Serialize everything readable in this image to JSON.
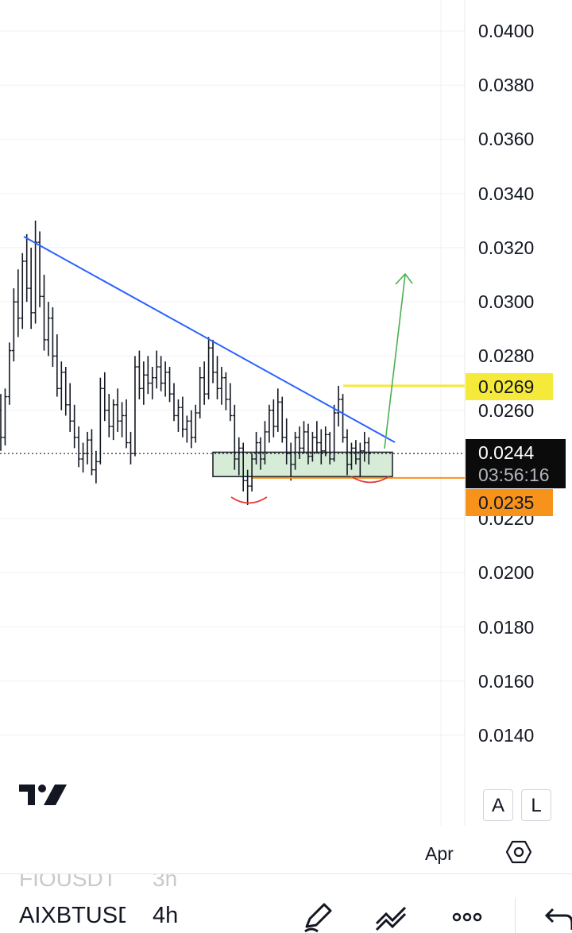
{
  "chart_data": {
    "type": "candlestick",
    "symbol": "AIXBTUSDT",
    "timeframe": "4h",
    "y_axis": {
      "ticks": [
        "0.0400",
        "0.0380",
        "0.0360",
        "0.0340",
        "0.0320",
        "0.0300",
        "0.0280",
        "0.0260",
        "0.0220",
        "0.0200",
        "0.0180",
        "0.0160",
        "0.0140"
      ],
      "range": [
        0.0122,
        0.041
      ]
    },
    "x_axis": {
      "ticks": [
        "Apr"
      ]
    },
    "current_price": "0.0244",
    "countdown": "03:56:16",
    "levels": {
      "resistance": "0.0269",
      "support": "0.0235"
    },
    "ohlc": [
      [
        0.026,
        0.0266,
        0.0245,
        0.025
      ],
      [
        0.025,
        0.0268,
        0.0247,
        0.0265
      ],
      [
        0.0265,
        0.0285,
        0.0262,
        0.0282
      ],
      [
        0.0282,
        0.0305,
        0.0278,
        0.03
      ],
      [
        0.03,
        0.0312,
        0.0287,
        0.0294
      ],
      [
        0.0294,
        0.0318,
        0.029,
        0.0315
      ],
      [
        0.0315,
        0.0325,
        0.03,
        0.0305
      ],
      [
        0.0305,
        0.032,
        0.029,
        0.0296
      ],
      [
        0.0296,
        0.033,
        0.0292,
        0.0322
      ],
      [
        0.0322,
        0.0326,
        0.0298,
        0.0302
      ],
      [
        0.0302,
        0.031,
        0.0282,
        0.0286
      ],
      [
        0.0286,
        0.03,
        0.028,
        0.0294
      ],
      [
        0.0294,
        0.0298,
        0.0276,
        0.028
      ],
      [
        0.028,
        0.0288,
        0.0265,
        0.0268
      ],
      [
        0.0268,
        0.0278,
        0.026,
        0.0274
      ],
      [
        0.0274,
        0.0276,
        0.0258,
        0.0262
      ],
      [
        0.0262,
        0.027,
        0.0252,
        0.0256
      ],
      [
        0.0256,
        0.0262,
        0.0246,
        0.025
      ],
      [
        0.025,
        0.0254,
        0.0239,
        0.0242
      ],
      [
        0.0242,
        0.0248,
        0.0237,
        0.0244
      ],
      [
        0.0244,
        0.0252,
        0.024,
        0.0249
      ],
      [
        0.0249,
        0.0253,
        0.0236,
        0.0238
      ],
      [
        0.0238,
        0.0245,
        0.0233,
        0.0241
      ],
      [
        0.0241,
        0.0272,
        0.024,
        0.0268
      ],
      [
        0.0268,
        0.0274,
        0.0256,
        0.026
      ],
      [
        0.026,
        0.0266,
        0.025,
        0.0254
      ],
      [
        0.0254,
        0.0264,
        0.0249,
        0.0262
      ],
      [
        0.0262,
        0.0268,
        0.0252,
        0.0256
      ],
      [
        0.0256,
        0.0263,
        0.025,
        0.0258
      ],
      [
        0.0258,
        0.0264,
        0.0246,
        0.0248
      ],
      [
        0.0248,
        0.0252,
        0.024,
        0.0244
      ],
      [
        0.0244,
        0.028,
        0.0243,
        0.0276
      ],
      [
        0.0276,
        0.0282,
        0.0264,
        0.0268
      ],
      [
        0.0268,
        0.0278,
        0.0262,
        0.0273
      ],
      [
        0.0273,
        0.028,
        0.0266,
        0.027
      ],
      [
        0.027,
        0.0276,
        0.0264,
        0.0272
      ],
      [
        0.0272,
        0.0282,
        0.0268,
        0.0276
      ],
      [
        0.0276,
        0.028,
        0.0267,
        0.027
      ],
      [
        0.027,
        0.0278,
        0.0265,
        0.0274
      ],
      [
        0.0274,
        0.0276,
        0.0263,
        0.0266
      ],
      [
        0.0266,
        0.027,
        0.0256,
        0.0258
      ],
      [
        0.0258,
        0.0264,
        0.0252,
        0.0261
      ],
      [
        0.0261,
        0.0265,
        0.025,
        0.0253
      ],
      [
        0.0253,
        0.0258,
        0.0248,
        0.0256
      ],
      [
        0.0256,
        0.026,
        0.0246,
        0.025
      ],
      [
        0.025,
        0.0262,
        0.0248,
        0.0259
      ],
      [
        0.0259,
        0.0276,
        0.0257,
        0.0272
      ],
      [
        0.0272,
        0.0278,
        0.0262,
        0.0266
      ],
      [
        0.0266,
        0.0287,
        0.0264,
        0.0283
      ],
      [
        0.0283,
        0.0286,
        0.027,
        0.0274
      ],
      [
        0.0274,
        0.028,
        0.0264,
        0.0268
      ],
      [
        0.0268,
        0.0276,
        0.0262,
        0.0272
      ],
      [
        0.0272,
        0.0274,
        0.026,
        0.0264
      ],
      [
        0.0264,
        0.027,
        0.0256,
        0.0258
      ],
      [
        0.0258,
        0.0262,
        0.0238,
        0.0242
      ],
      [
        0.0242,
        0.025,
        0.0236,
        0.0246
      ],
      [
        0.0246,
        0.0248,
        0.023,
        0.0234
      ],
      [
        0.0234,
        0.0238,
        0.0225,
        0.0232
      ],
      [
        0.0232,
        0.0244,
        0.023,
        0.0242
      ],
      [
        0.0242,
        0.0252,
        0.024,
        0.0248
      ],
      [
        0.0248,
        0.025,
        0.0238,
        0.0242
      ],
      [
        0.0242,
        0.0256,
        0.024,
        0.0252
      ],
      [
        0.0252,
        0.0262,
        0.0248,
        0.026
      ],
      [
        0.026,
        0.0264,
        0.025,
        0.0254
      ],
      [
        0.0254,
        0.0268,
        0.0252,
        0.0263
      ],
      [
        0.0263,
        0.0265,
        0.0248,
        0.025
      ],
      [
        0.025,
        0.0257,
        0.024,
        0.0244
      ],
      [
        0.0244,
        0.0248,
        0.0234,
        0.024
      ],
      [
        0.024,
        0.0252,
        0.0238,
        0.025
      ],
      [
        0.025,
        0.0254,
        0.0242,
        0.0246
      ],
      [
        0.0246,
        0.0256,
        0.0244,
        0.0252
      ],
      [
        0.0252,
        0.0255,
        0.024,
        0.0243
      ],
      [
        0.0243,
        0.0252,
        0.0241,
        0.025
      ],
      [
        0.025,
        0.0256,
        0.0244,
        0.0248
      ],
      [
        0.0248,
        0.0253,
        0.024,
        0.0245
      ],
      [
        0.0245,
        0.0254,
        0.0243,
        0.0251
      ],
      [
        0.0251,
        0.0252,
        0.024,
        0.0242
      ],
      [
        0.0242,
        0.0262,
        0.0241,
        0.0259
      ],
      [
        0.0259,
        0.0269,
        0.0254,
        0.0264
      ],
      [
        0.0264,
        0.0266,
        0.0248,
        0.025
      ],
      [
        0.025,
        0.0253,
        0.0236,
        0.024
      ],
      [
        0.024,
        0.0248,
        0.0238,
        0.0246
      ],
      [
        0.0246,
        0.0249,
        0.024,
        0.0242
      ],
      [
        0.0242,
        0.0248,
        0.0235,
        0.0245
      ],
      [
        0.0245,
        0.0252,
        0.0241,
        0.0248
      ],
      [
        0.0248,
        0.025,
        0.024,
        0.0244
      ]
    ]
  },
  "drawings": {
    "trendline_color": "#2962ff",
    "arrow_color": "#4caf50",
    "resistance_color": "#f5e93a",
    "support_color": "#f7931a",
    "zone_fill": "#c8e6c9",
    "marker_color": "#e53935"
  },
  "ui": {
    "scale_auto": "A",
    "scale_log": "L",
    "settings_icon": "hexagon-settings-icon"
  },
  "bottom_bar": {
    "ghost_symbol": "FIOUSDT",
    "ghost_timeframe": "3h",
    "symbol": "AIXBTUSDT",
    "timeframe": "4h",
    "icons": [
      "pencil-icon",
      "trend-lines-icon",
      "more-icon",
      "undo-icon"
    ]
  }
}
